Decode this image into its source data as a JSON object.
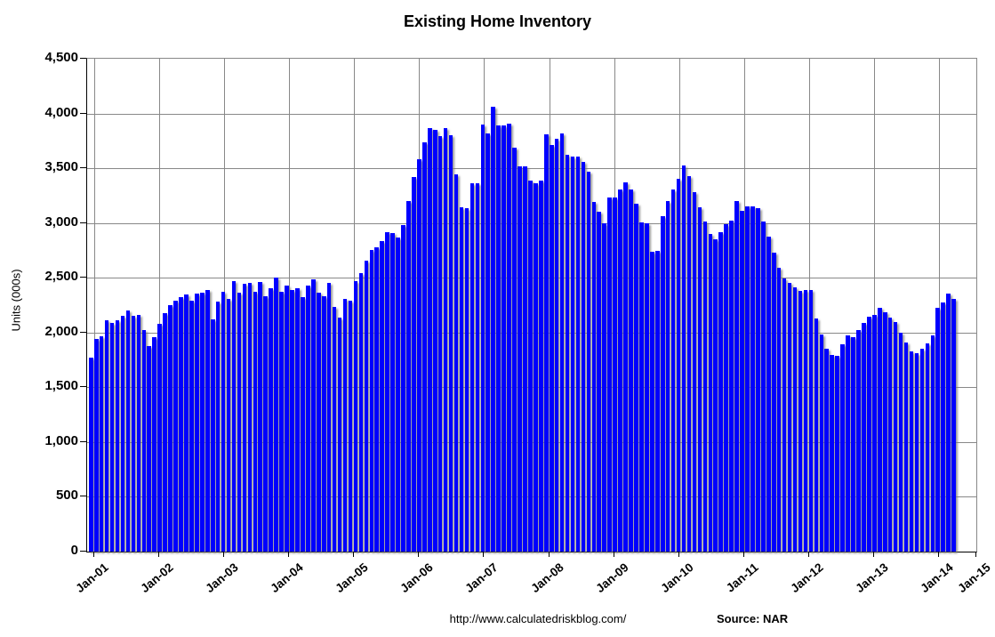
{
  "title": "Existing Home Inventory",
  "footer": {
    "url": "http://www.calculatedriskblog.com/",
    "source": "Source: NAR"
  },
  "chart_data": {
    "type": "bar",
    "title": "Existing Home Inventory",
    "ylabel": "Units (000s)",
    "ylim": [
      0,
      4500
    ],
    "ytick_interval": 500,
    "y_tick_labels": [
      "4,500",
      "4,000",
      "3,500",
      "3,000",
      "2,500",
      "2,000",
      "1,500",
      "1,000",
      "500",
      "0"
    ],
    "x_tick_labels": [
      "Jan-01",
      "Jan-02",
      "Jan-03",
      "Jan-04",
      "Jan-05",
      "Jan-06",
      "Jan-07",
      "Jan-08",
      "Jan-09",
      "Jan-10",
      "Jan-11",
      "Jan-12",
      "Jan-13",
      "Jan-14",
      "Jan-15"
    ],
    "x_start": "2001-01",
    "x_end": "2014-08",
    "grid": true,
    "bar_color": "#0000ff",
    "gridline_color": "#888888",
    "series": [
      {
        "name": "Existing Home Inventory (000s)",
        "values": [
          1770,
          1945,
          1965,
          2110,
          2090,
          2110,
          2150,
          2200,
          2150,
          2160,
          2025,
          1880,
          1960,
          2080,
          2180,
          2250,
          2290,
          2320,
          2350,
          2290,
          2355,
          2360,
          2390,
          2120,
          2280,
          2375,
          2310,
          2470,
          2365,
          2445,
          2455,
          2370,
          2465,
          2335,
          2405,
          2500,
          2370,
          2430,
          2390,
          2405,
          2320,
          2430,
          2485,
          2365,
          2335,
          2455,
          2230,
          2135,
          2310,
          2290,
          2470,
          2545,
          2660,
          2750,
          2780,
          2835,
          2915,
          2905,
          2865,
          2985,
          3200,
          3420,
          3580,
          3735,
          3865,
          3850,
          3790,
          3865,
          3805,
          3445,
          3140,
          3135,
          3365,
          3365,
          3895,
          3815,
          4060,
          3890,
          3890,
          3905,
          3690,
          3515,
          3515,
          3390,
          3365,
          3390,
          3810,
          3715,
          3770,
          3815,
          3620,
          3605,
          3605,
          3555,
          3470,
          3190,
          3105,
          3000,
          3230,
          3230,
          3310,
          3375,
          3305,
          3180,
          3005,
          2995,
          2740,
          2745,
          3065,
          3200,
          3310,
          3405,
          3525,
          3425,
          3285,
          3145,
          3015,
          2900,
          2850,
          2920,
          2990,
          3020,
          3200,
          3115,
          3155,
          3155,
          3135,
          3015,
          2875,
          2730,
          2590,
          2490,
          2450,
          2415,
          2380,
          2385,
          2385,
          2130,
          1980,
          1850,
          1795,
          1790,
          1895,
          1975,
          1955,
          2020,
          2085,
          2147,
          2157,
          2227,
          2187,
          2138,
          2093,
          1995,
          1905,
          1827,
          1813,
          1849,
          1903,
          1970,
          2227,
          2273,
          2355,
          2309
        ]
      }
    ]
  }
}
